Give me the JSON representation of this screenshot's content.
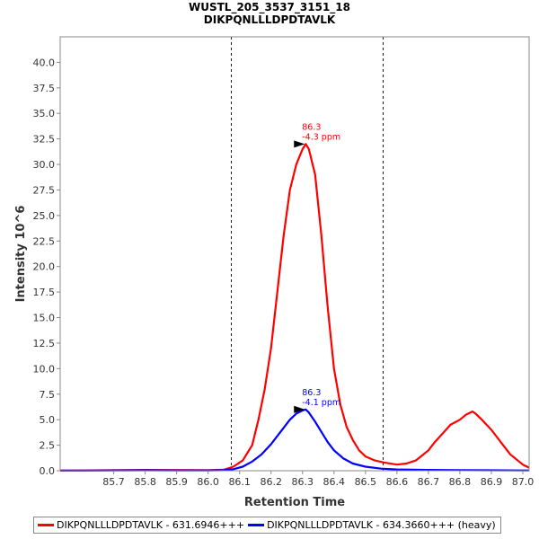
{
  "chart_data": {
    "type": "line",
    "title": "WUSTL_205_3537_3151_18",
    "subtitle": "DIKPQNLLLDPDTAVLK",
    "xlabel": "Retention Time",
    "ylabel": "Intensity 10^6",
    "xlim": [
      85.53,
      87.02
    ],
    "ylim": [
      0,
      42.5
    ],
    "x_ticks": [
      "85.7",
      "85.8",
      "85.9",
      "86.0",
      "86.1",
      "86.2",
      "86.3",
      "86.4",
      "86.5",
      "86.6",
      "86.7",
      "86.8",
      "86.9",
      "87.0"
    ],
    "y_ticks": [
      "0.0",
      "2.5",
      "5.0",
      "7.5",
      "10.0",
      "12.5",
      "15.0",
      "17.5",
      "20.0",
      "22.5",
      "25.0",
      "27.5",
      "30.0",
      "32.5",
      "35.0",
      "37.5",
      "40.0"
    ],
    "integration_bounds": [
      86.074,
      86.556
    ],
    "series": [
      {
        "name": "DIKPQNLLLDPDTAVLK - 631.6946+++",
        "color": "#ff0000",
        "x": [
          85.53,
          85.6,
          85.7,
          85.8,
          85.9,
          86.0,
          86.05,
          86.08,
          86.11,
          86.14,
          86.16,
          86.18,
          86.2,
          86.22,
          86.24,
          86.26,
          86.28,
          86.3,
          86.31,
          86.32,
          86.34,
          86.36,
          86.38,
          86.4,
          86.42,
          86.44,
          86.46,
          86.48,
          86.5,
          86.53,
          86.56,
          86.6,
          86.63,
          86.66,
          86.68,
          86.7,
          86.72,
          86.75,
          86.77,
          86.8,
          86.82,
          86.84,
          86.85,
          86.87,
          86.9,
          86.93,
          86.96,
          87.0,
          87.02
        ],
        "y": [
          0.02,
          0.03,
          0.05,
          0.08,
          0.07,
          0.05,
          0.1,
          0.4,
          1.0,
          2.5,
          5.0,
          8.0,
          12.0,
          17.5,
          23.0,
          27.5,
          30.0,
          31.5,
          32.0,
          31.5,
          29.0,
          23.0,
          16.0,
          10.0,
          6.5,
          4.3,
          3.0,
          2.0,
          1.4,
          1.0,
          0.8,
          0.6,
          0.7,
          1.0,
          1.5,
          2.0,
          2.8,
          3.8,
          4.5,
          5.0,
          5.5,
          5.8,
          5.6,
          5.0,
          4.0,
          2.8,
          1.6,
          0.6,
          0.3
        ]
      },
      {
        "name": "DIKPQNLLLDPDTAVLK - 634.3660+++ (heavy)",
        "color": "#0000ff",
        "x": [
          85.53,
          85.6,
          85.7,
          85.8,
          85.9,
          86.0,
          86.05,
          86.08,
          86.11,
          86.14,
          86.17,
          86.2,
          86.23,
          86.26,
          86.28,
          86.3,
          86.31,
          86.32,
          86.34,
          86.36,
          86.38,
          86.4,
          86.43,
          86.46,
          86.5,
          86.55,
          86.6,
          86.7,
          86.8,
          86.9,
          87.0,
          87.02
        ],
        "y": [
          0.02,
          0.02,
          0.03,
          0.04,
          0.03,
          0.03,
          0.05,
          0.15,
          0.4,
          0.9,
          1.6,
          2.6,
          3.8,
          5.0,
          5.6,
          5.9,
          6.0,
          5.7,
          4.8,
          3.8,
          2.8,
          2.0,
          1.2,
          0.7,
          0.4,
          0.2,
          0.12,
          0.08,
          0.05,
          0.04,
          0.03,
          0.03
        ]
      }
    ],
    "annotations": [
      {
        "series": 0,
        "x": 86.31,
        "y": 32.0,
        "line1": "86.3",
        "line2": "-4.3 ppm",
        "color": "#ff0000"
      },
      {
        "series": 1,
        "x": 86.31,
        "y": 6.0,
        "line1": "86.3",
        "line2": "-4.1 ppm",
        "color": "#0000ff"
      }
    ],
    "legend": [
      {
        "label": "DIKPQNLLLDPDTAVLK - 631.6946+++",
        "color": "#ff0000"
      },
      {
        "label": "DIKPQNLLLDPDTAVLK - 634.3660+++ (heavy)",
        "color": "#0000ff"
      }
    ],
    "legend_position": "bottom"
  }
}
